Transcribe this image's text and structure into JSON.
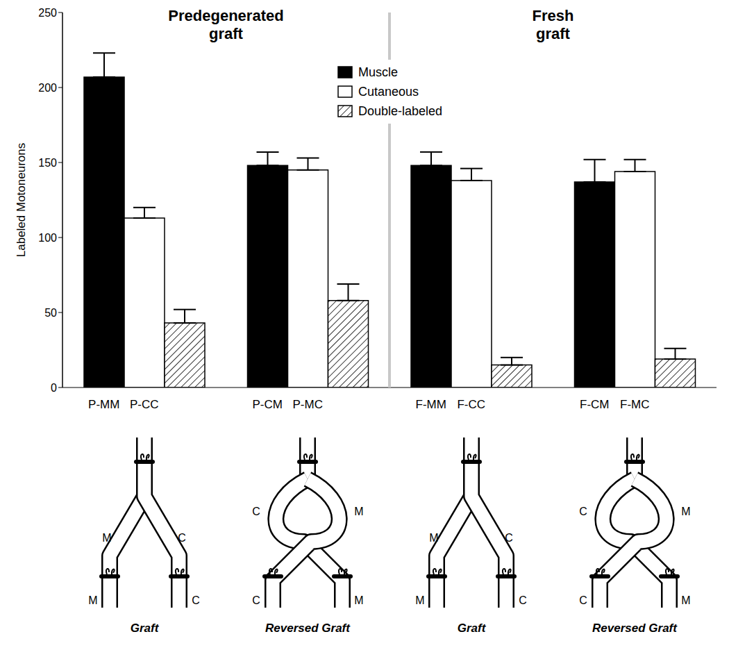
{
  "chart_data": {
    "type": "bar",
    "panel_titles": [
      "Predegenerated graft",
      "Fresh graft"
    ],
    "y_label": "Labeled Motoneurons",
    "categories": [
      "P-MM P-CC",
      "P-CM P-MC",
      "F-MM F-CC",
      "F-CM F-MC"
    ],
    "series": [
      {
        "name": "Muscle",
        "color": "#000000",
        "values": [
          207,
          148,
          148,
          137
        ],
        "errors": [
          16,
          9,
          9,
          15
        ]
      },
      {
        "name": "Cutaneous",
        "color": "#ffffff",
        "values": [
          113,
          145,
          138,
          144
        ],
        "errors": [
          7,
          8,
          8,
          8
        ]
      },
      {
        "name": "Double-labeled",
        "color": "#ffffff",
        "line_style": "hatched",
        "values": [
          43,
          58,
          15,
          19
        ],
        "errors": [
          9,
          11,
          5,
          7
        ]
      }
    ],
    "ylim": [
      0,
      250
    ],
    "yticks": [
      0,
      50,
      100,
      150,
      200,
      250
    ],
    "grid": false,
    "legend": "top",
    "diagrams": [
      {
        "type": "graft",
        "caption": "Graft",
        "upper_labels": [
          "M",
          "C"
        ],
        "lower_labels": [
          "M",
          "C"
        ]
      },
      {
        "type": "reversed_graft",
        "caption": "Reversed Graft",
        "upper_labels": [
          "C",
          "M"
        ],
        "lower_labels": [
          "C",
          "M"
        ]
      },
      {
        "type": "graft",
        "caption": "Graft",
        "upper_labels": [
          "M",
          "C"
        ],
        "lower_labels": [
          "M",
          "C"
        ]
      },
      {
        "type": "reversed_graft",
        "caption": "Reversed Graft",
        "upper_labels": [
          "C",
          "M"
        ],
        "lower_labels": [
          "C",
          "M"
        ]
      }
    ]
  }
}
